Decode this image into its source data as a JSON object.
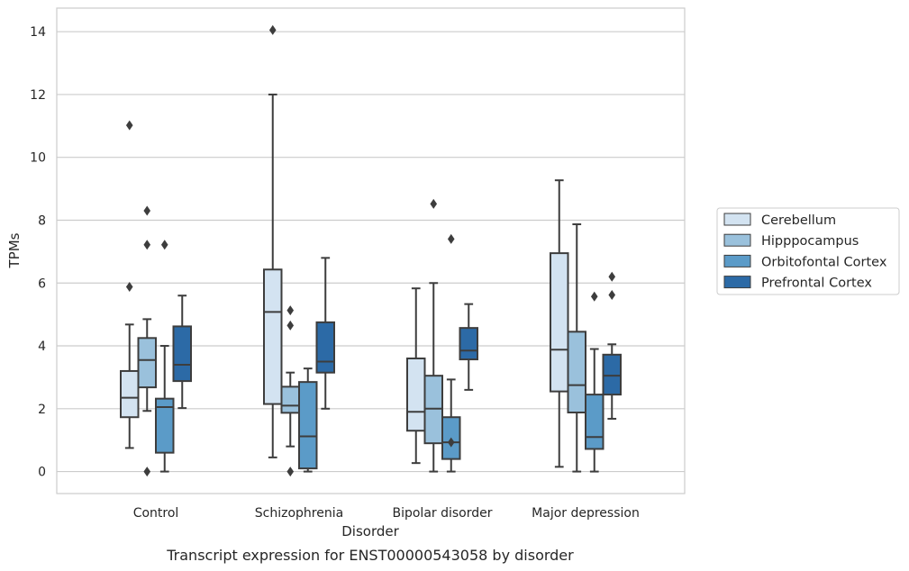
{
  "chart_data": {
    "type": "box",
    "xlabel": "Disorder",
    "ylabel": "TPMs",
    "caption": "Transcript expression for ENST00000543058 by disorder",
    "ylim": [
      -0.7,
      14.75
    ],
    "yticks": [
      0,
      2,
      4,
      6,
      8,
      10,
      12,
      14
    ],
    "grid": true,
    "legend_position": "right",
    "categories": [
      "Control",
      "Schizophrenia",
      "Bipolar disorder",
      "Major depression"
    ],
    "series": [
      {
        "name": "Cerebellum",
        "color": "#d3e3f1",
        "boxes": [
          {
            "low": 0.75,
            "q1": 1.73,
            "median": 2.35,
            "q3": 3.2,
            "high": 4.68,
            "outliers": [
              5.88,
              11.02
            ]
          },
          {
            "low": 0.45,
            "q1": 2.15,
            "median": 5.08,
            "q3": 6.43,
            "high": 12.0,
            "outliers": [
              14.05
            ]
          },
          {
            "low": 0.27,
            "q1": 1.3,
            "median": 1.9,
            "q3": 3.6,
            "high": 5.83,
            "outliers": []
          },
          {
            "low": 0.15,
            "q1": 2.55,
            "median": 3.88,
            "q3": 6.95,
            "high": 9.27,
            "outliers": []
          }
        ]
      },
      {
        "name": "Hipppocampus",
        "color": "#9ac1dc",
        "boxes": [
          {
            "low": 1.93,
            "q1": 2.68,
            "median": 3.55,
            "q3": 4.25,
            "high": 4.85,
            "outliers": [
              7.22,
              8.3,
              0.0
            ]
          },
          {
            "low": 0.8,
            "q1": 1.87,
            "median": 2.1,
            "q3": 2.7,
            "high": 3.15,
            "outliers": [
              4.65,
              5.13,
              0.0
            ]
          },
          {
            "low": 0.0,
            "q1": 0.9,
            "median": 2.0,
            "q3": 3.05,
            "high": 6.0,
            "outliers": [
              8.52
            ]
          },
          {
            "low": 0.0,
            "q1": 1.88,
            "median": 2.75,
            "q3": 4.45,
            "high": 7.87,
            "outliers": []
          }
        ]
      },
      {
        "name": "Orbitofontal Cortex",
        "color": "#5b9bc8",
        "boxes": [
          {
            "low": 0.0,
            "q1": 0.6,
            "median": 2.05,
            "q3": 2.32,
            "high": 4.0,
            "outliers": [
              7.22
            ]
          },
          {
            "low": 0.0,
            "q1": 0.1,
            "median": 1.12,
            "q3": 2.85,
            "high": 3.28,
            "outliers": []
          },
          {
            "low": 0.0,
            "q1": 0.4,
            "median": 0.93,
            "q3": 1.73,
            "high": 2.93,
            "outliers": [
              7.4,
              0.93
            ]
          },
          {
            "low": 0.0,
            "q1": 0.72,
            "median": 1.1,
            "q3": 2.45,
            "high": 3.9,
            "outliers": [
              5.57
            ]
          }
        ]
      },
      {
        "name": "Prefrontal Cortex",
        "color": "#2c6aa6",
        "boxes": [
          {
            "low": 2.02,
            "q1": 2.88,
            "median": 3.4,
            "q3": 4.62,
            "high": 5.6,
            "outliers": []
          },
          {
            "low": 2.0,
            "q1": 3.15,
            "median": 3.5,
            "q3": 4.75,
            "high": 6.8,
            "outliers": []
          },
          {
            "low": 2.6,
            "q1": 3.57,
            "median": 3.85,
            "q3": 4.57,
            "high": 5.33,
            "outliers": []
          },
          {
            "low": 1.68,
            "q1": 2.45,
            "median": 3.05,
            "q3": 3.72,
            "high": 4.05,
            "outliers": [
              5.62,
              6.2
            ]
          }
        ]
      }
    ]
  }
}
